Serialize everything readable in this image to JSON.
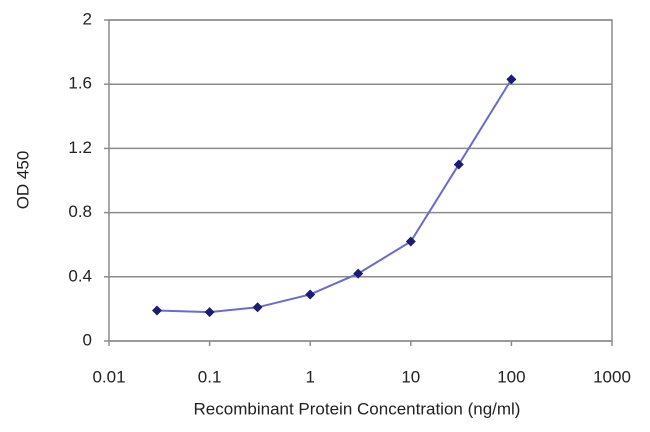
{
  "chart_data": {
    "type": "line",
    "x_label": "Recombinant Protein Concentration (ng/ml)",
    "y_label": "OD 450",
    "x": [
      0.03,
      0.1,
      0.3,
      1,
      3,
      10,
      30,
      100
    ],
    "series": [
      {
        "color": "#6a6ad0",
        "marker_color": "#1c1c72",
        "values": [
          0.19,
          0.18,
          0.21,
          0.29,
          0.42,
          0.62,
          1.1,
          1.63
        ]
      }
    ],
    "xscale": "log",
    "xlim": [
      0.01,
      1000
    ],
    "xticks": [
      0.01,
      0.1,
      1,
      10,
      100,
      1000
    ],
    "ylim": [
      0,
      2
    ],
    "yticks": [
      0,
      0.4,
      0.8,
      1.2,
      1.6,
      2
    ],
    "grid": true
  }
}
